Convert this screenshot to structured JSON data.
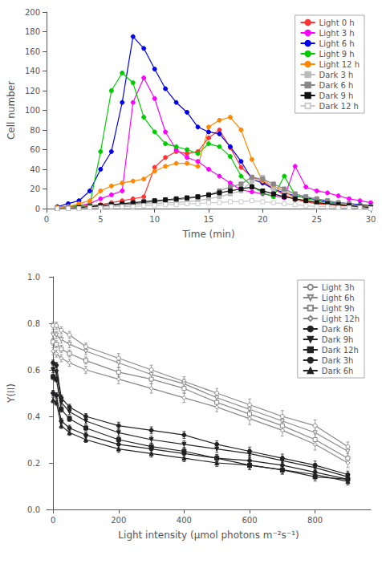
{
  "chart_data": [
    {
      "type": "line",
      "xlabel": "Time (min)",
      "ylabel": "Cell number",
      "x": [
        1,
        2,
        3,
        4,
        5,
        6,
        7,
        8,
        9,
        10,
        11,
        12,
        13,
        14,
        15,
        16,
        17,
        18,
        19,
        20,
        21,
        22,
        23,
        24,
        25,
        26,
        27,
        28,
        29,
        30
      ],
      "xlim": [
        0,
        30
      ],
      "ylim": [
        0,
        200
      ],
      "xticks": [
        0,
        5,
        10,
        15,
        20,
        25,
        30
      ],
      "yticks": [
        0,
        20,
        40,
        60,
        80,
        100,
        120,
        140,
        160,
        180,
        200
      ],
      "grid": false,
      "legend": "upper right",
      "series": [
        {
          "name": "Light 0 h",
          "color": "#FF3333",
          "marker": "circle",
          "values": [
            1,
            2,
            2,
            3,
            4,
            6,
            8,
            10,
            12,
            42,
            52,
            58,
            56,
            58,
            72,
            80,
            62,
            42,
            32,
            28,
            20,
            14,
            9,
            7,
            5,
            4,
            3,
            3,
            2,
            1
          ]
        },
        {
          "name": "Light 3 h",
          "color": "#FF00FF",
          "marker": "circle",
          "values": [
            1,
            2,
            3,
            5,
            10,
            14,
            18,
            108,
            133,
            112,
            78,
            60,
            52,
            48,
            40,
            33,
            26,
            19,
            17,
            15,
            13,
            11,
            43,
            22,
            18,
            16,
            13,
            10,
            8,
            6
          ]
        },
        {
          "name": "Light 6 h",
          "color": "#0000EE",
          "marker": "circle",
          "values": [
            2,
            5,
            8,
            18,
            40,
            58,
            108,
            175,
            163,
            142,
            122,
            108,
            98,
            83,
            78,
            76,
            63,
            48,
            30,
            26,
            20,
            16,
            13,
            11,
            9,
            7,
            6,
            5,
            4,
            3
          ]
        },
        {
          "name": "Light 9 h",
          "color": "#00CC00",
          "marker": "circle",
          "values": [
            1,
            2,
            3,
            4,
            58,
            120,
            138,
            128,
            93,
            78,
            66,
            63,
            60,
            56,
            66,
            63,
            53,
            33,
            23,
            16,
            12,
            33,
            14,
            10,
            8,
            6,
            5,
            4,
            3,
            2
          ]
        },
        {
          "name": "Light 12 h",
          "color": "#FF8800",
          "marker": "circle",
          "values": [
            1,
            2,
            5,
            8,
            18,
            23,
            26,
            28,
            30,
            38,
            43,
            46,
            46,
            43,
            83,
            90,
            93,
            80,
            50,
            28,
            23,
            18,
            10,
            8,
            6,
            5,
            4,
            4,
            3,
            2
          ]
        },
        {
          "name": "Dark 3 h",
          "color": "#BBBBBB",
          "marker": "square",
          "values": [
            0,
            0,
            0,
            1,
            2,
            3,
            3,
            4,
            5,
            5,
            6,
            6,
            7,
            8,
            10,
            12,
            15,
            18,
            28,
            32,
            20,
            18,
            15,
            12,
            10,
            8,
            6,
            4,
            2,
            1
          ]
        },
        {
          "name": "Dark 6 h",
          "color": "#888888",
          "marker": "square",
          "values": [
            0,
            1,
            1,
            2,
            3,
            4,
            4,
            5,
            6,
            7,
            8,
            9,
            10,
            12,
            14,
            18,
            22,
            25,
            32,
            30,
            25,
            20,
            15,
            12,
            10,
            8,
            6,
            5,
            3,
            2
          ]
        },
        {
          "name": "Dark 9 h",
          "color": "#111111",
          "marker": "square",
          "values": [
            0,
            0,
            1,
            2,
            3,
            4,
            5,
            6,
            7,
            8,
            9,
            10,
            11,
            12,
            14,
            16,
            18,
            20,
            22,
            18,
            15,
            12,
            10,
            8,
            6,
            5,
            4,
            3,
            2,
            1
          ]
        },
        {
          "name": "Dark 12 h",
          "color": "#CCCCCC",
          "marker": "open square",
          "values": [
            0,
            0,
            0,
            1,
            1,
            2,
            2,
            2,
            3,
            3,
            4,
            4,
            5,
            5,
            6,
            6,
            7,
            7,
            8,
            7,
            6,
            5,
            4,
            3,
            2,
            2,
            1,
            1,
            1,
            0
          ]
        }
      ]
    },
    {
      "type": "line",
      "xlabel": "Light intensity (μmol photons m⁻²s⁻¹)",
      "ylabel": "Y(II)",
      "x": [
        0,
        10,
        25,
        50,
        100,
        200,
        300,
        400,
        500,
        600,
        700,
        800,
        900
      ],
      "xlim": [
        -20,
        970
      ],
      "ylim": [
        0.0,
        1.0
      ],
      "xticks": [
        0,
        200,
        400,
        600,
        800
      ],
      "yticks": [
        {
          "value": 0.0,
          "label": "0.0"
        },
        0.2,
        0.4,
        0.6,
        0.8,
        {
          "value": 1.0,
          "label": "1.0"
        }
      ],
      "grid": false,
      "legend": "upper right",
      "series": [
        {
          "name": "Light 3h",
          "color": "#888888",
          "marker": "open circle",
          "values": [
            0.79,
            0.79,
            0.77,
            0.75,
            0.7,
            0.65,
            0.6,
            0.55,
            0.5,
            0.45,
            0.4,
            0.36,
            0.27
          ],
          "yerr": [
            0.015,
            0.015,
            0.015,
            0.015,
            0.015,
            0.02,
            0.02,
            0.02,
            0.02,
            0.025,
            0.025,
            0.025,
            0.02
          ]
        },
        {
          "name": "Light 6h",
          "color": "#888888",
          "marker": "open triangle_down",
          "values": [
            0.75,
            0.75,
            0.73,
            0.71,
            0.68,
            0.63,
            0.58,
            0.54,
            0.48,
            0.43,
            0.38,
            0.33,
            0.25
          ],
          "yerr": [
            0.015,
            0.015,
            0.015,
            0.015,
            0.015,
            0.02,
            0.02,
            0.02,
            0.02,
            0.025,
            0.025,
            0.025,
            0.02
          ]
        },
        {
          "name": "Light 9h",
          "color": "#888888",
          "marker": "open square",
          "values": [
            0.72,
            0.71,
            0.69,
            0.67,
            0.64,
            0.59,
            0.56,
            0.52,
            0.46,
            0.41,
            0.36,
            0.3,
            0.22
          ],
          "yerr": [
            0.015,
            0.015,
            0.015,
            0.015,
            0.015,
            0.02,
            0.02,
            0.02,
            0.02,
            0.025,
            0.025,
            0.025,
            0.02
          ]
        },
        {
          "name": "Light 12h",
          "color": "#888888",
          "marker": "open diamond",
          "values": [
            0.68,
            0.67,
            0.65,
            0.63,
            0.6,
            0.56,
            0.52,
            0.48,
            0.44,
            0.39,
            0.34,
            0.28,
            0.2
          ],
          "yerr": [
            0.015,
            0.015,
            0.015,
            0.015,
            0.015,
            0.02,
            0.02,
            0.02,
            0.02,
            0.025,
            0.025,
            0.025,
            0.02
          ]
        },
        {
          "name": "Dark 6h",
          "color": "#222222",
          "marker": "circle",
          "values": [
            0.63,
            0.62,
            0.48,
            0.44,
            0.4,
            0.36,
            0.34,
            0.32,
            0.28,
            0.25,
            0.22,
            0.19,
            0.15
          ],
          "yerr": [
            0.012,
            0.012,
            0.012,
            0.012,
            0.012,
            0.015,
            0.015,
            0.015,
            0.015,
            0.018,
            0.018,
            0.018,
            0.015
          ]
        },
        {
          "name": "Dark 9h",
          "color": "#222222",
          "marker": "triangle_down",
          "values": [
            0.6,
            0.59,
            0.46,
            0.42,
            0.38,
            0.33,
            0.3,
            0.28,
            0.26,
            0.24,
            0.21,
            0.18,
            0.14
          ],
          "yerr": [
            0.012,
            0.012,
            0.012,
            0.012,
            0.012,
            0.015,
            0.015,
            0.015,
            0.015,
            0.018,
            0.018,
            0.018,
            0.015
          ]
        },
        {
          "name": "Dark 12h",
          "color": "#222222",
          "marker": "square",
          "values": [
            0.57,
            0.56,
            0.43,
            0.39,
            0.35,
            0.3,
            0.27,
            0.25,
            0.22,
            0.19,
            0.17,
            0.14,
            0.13
          ],
          "yerr": [
            0.012,
            0.012,
            0.012,
            0.012,
            0.012,
            0.015,
            0.015,
            0.015,
            0.015,
            0.018,
            0.018,
            0.018,
            0.015
          ]
        },
        {
          "name": "Dark 3h",
          "color": "#222222",
          "marker": "circle",
          "values": [
            0.5,
            0.49,
            0.38,
            0.35,
            0.32,
            0.28,
            0.26,
            0.24,
            0.22,
            0.21,
            0.19,
            0.16,
            0.13
          ],
          "yerr": [
            0.012,
            0.012,
            0.012,
            0.012,
            0.012,
            0.015,
            0.015,
            0.015,
            0.015,
            0.018,
            0.018,
            0.018,
            0.015
          ]
        },
        {
          "name": "Dark 6h",
          "color": "#222222",
          "marker": "triangle",
          "values": [
            0.47,
            0.46,
            0.36,
            0.33,
            0.3,
            0.26,
            0.24,
            0.22,
            0.2,
            0.19,
            0.17,
            0.15,
            0.12
          ],
          "yerr": [
            0.012,
            0.012,
            0.012,
            0.012,
            0.012,
            0.015,
            0.015,
            0.015,
            0.015,
            0.018,
            0.018,
            0.018,
            0.015
          ]
        }
      ]
    }
  ]
}
